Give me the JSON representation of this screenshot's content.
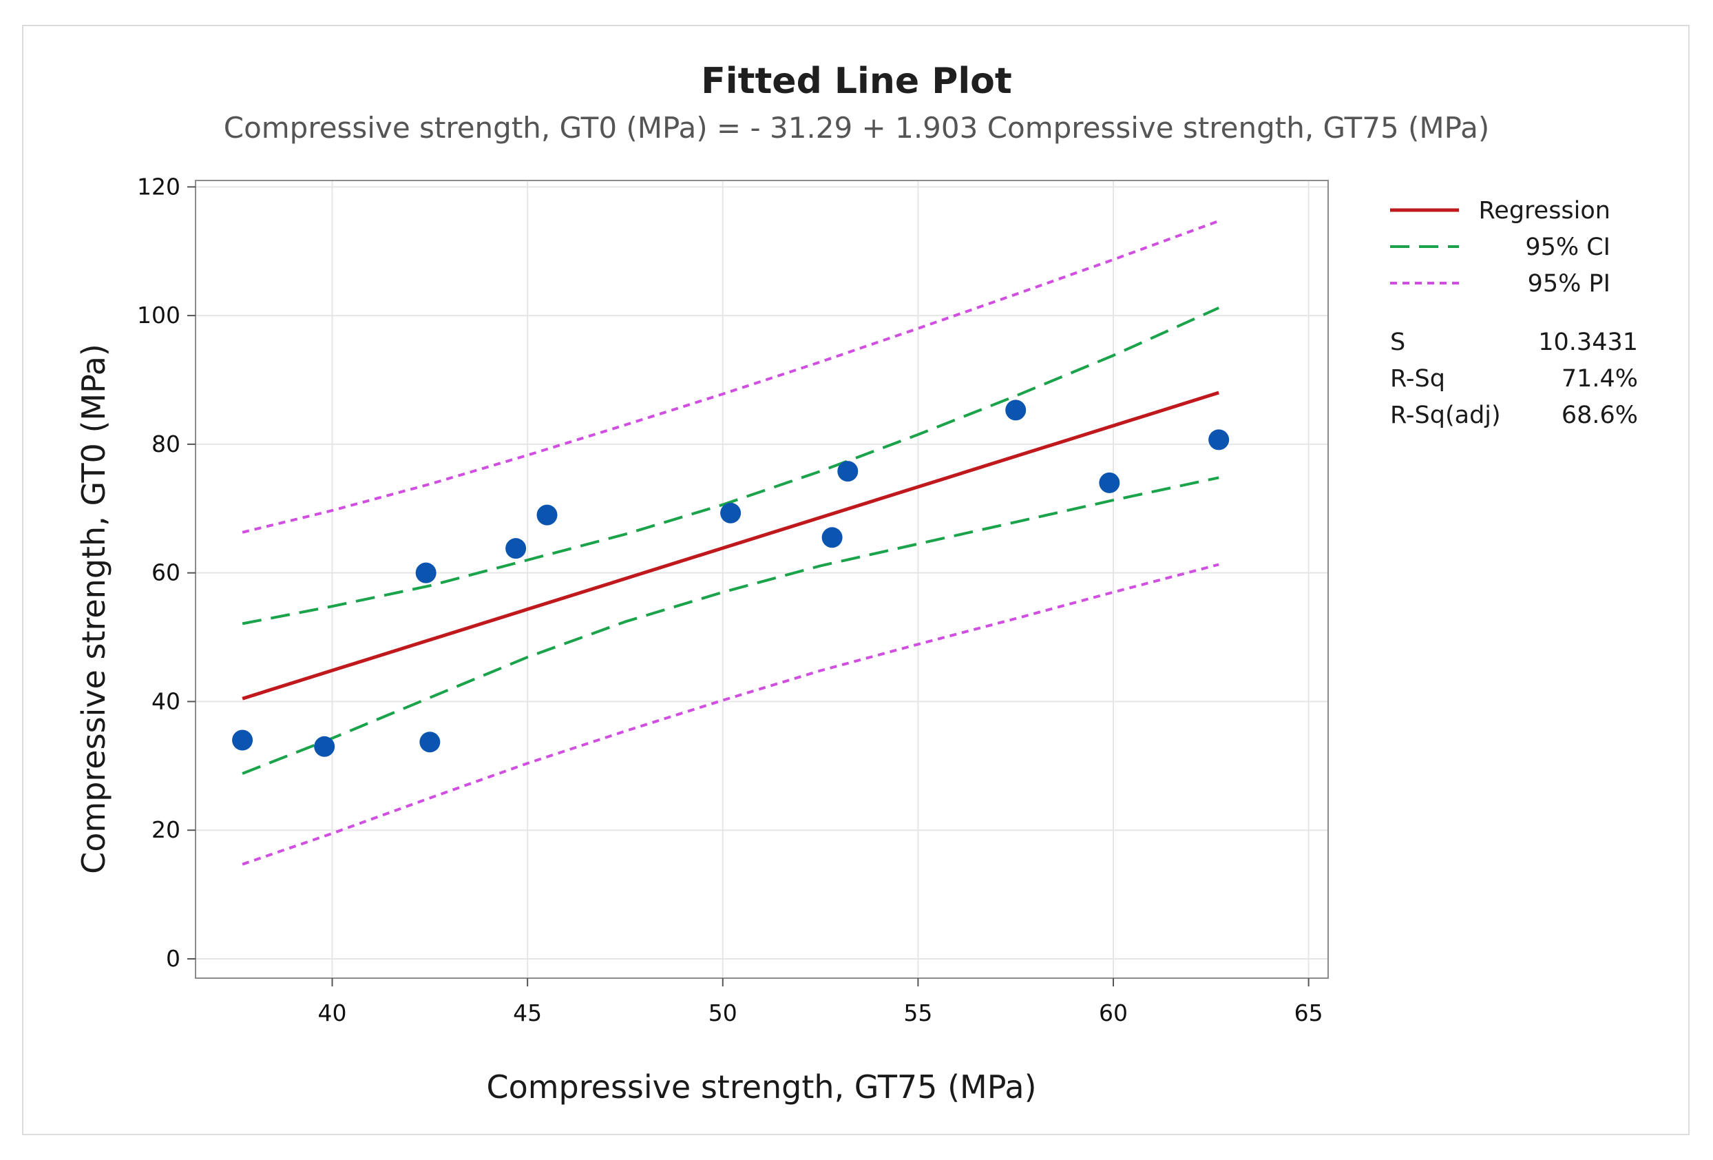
{
  "chart_data": {
    "type": "scatter",
    "title": "Fitted Line Plot",
    "subtitle": "Compressive strength, GT0 (MPa) = - 31.29 + 1.903 Compressive strength, GT75 (MPa)",
    "xlabel": "Compressive strength, GT75 (MPa)",
    "ylabel": "Compressive strength, GT0 (MPa)",
    "xlim": [
      36.5,
      65.5
    ],
    "ylim": [
      -3,
      121
    ],
    "xticks": [
      40,
      45,
      50,
      55,
      60,
      65
    ],
    "yticks": [
      0,
      20,
      40,
      60,
      80,
      100,
      120
    ],
    "grid": true,
    "legend_position": "right",
    "points": {
      "x": [
        37.7,
        39.8,
        42.4,
        42.5,
        44.7,
        45.5,
        50.2,
        52.8,
        53.2,
        57.5,
        59.9,
        62.7
      ],
      "y": [
        34.0,
        33.0,
        60.0,
        33.7,
        63.8,
        69.0,
        69.3,
        65.5,
        75.8,
        85.3,
        74.0,
        80.7
      ]
    },
    "fit": {
      "intercept": -31.29,
      "slope": 1.903,
      "x_range": [
        37.7,
        62.7
      ]
    },
    "series": [
      {
        "name": "Regression",
        "style": "solid",
        "color": "#c0191d",
        "x": [
          37.7,
          62.7
        ],
        "y": [
          40.45,
          88.02
        ]
      },
      {
        "name": "95% CI upper",
        "style": "dashed",
        "color": "#1aa34a",
        "x": [
          37.7,
          40,
          42.5,
          45,
          47.5,
          50,
          52.5,
          55,
          57.5,
          60,
          62.7
        ],
        "y": [
          52.1,
          54.8,
          58.0,
          62.0,
          66.0,
          70.6,
          75.8,
          81.5,
          87.5,
          93.8,
          101.2
        ]
      },
      {
        "name": "95% CI lower",
        "style": "dashed",
        "color": "#1aa34a",
        "x": [
          37.7,
          40,
          42.5,
          45,
          47.5,
          50,
          52.5,
          55,
          57.5,
          60,
          62.7
        ],
        "y": [
          28.8,
          34.3,
          40.6,
          46.9,
          52.4,
          57.0,
          61.1,
          64.5,
          67.9,
          71.3,
          74.8
        ]
      },
      {
        "name": "95% PI upper",
        "style": "dotted",
        "color": "#d04fe0",
        "x": [
          37.7,
          40,
          42.5,
          45,
          47.5,
          50,
          52.5,
          55,
          57.5,
          60,
          62.7
        ],
        "y": [
          66.3,
          69.7,
          73.8,
          78.3,
          83.0,
          87.8,
          92.8,
          98.0,
          103.3,
          108.7,
          114.7
        ]
      },
      {
        "name": "95% PI lower",
        "style": "dotted",
        "color": "#d04fe0",
        "x": [
          37.7,
          40,
          42.5,
          45,
          47.5,
          50,
          52.5,
          55,
          57.5,
          60,
          62.7
        ],
        "y": [
          14.7,
          19.5,
          25.0,
          30.4,
          35.4,
          40.2,
          44.8,
          48.9,
          52.9,
          57.0,
          61.3
        ]
      }
    ],
    "legend": [
      {
        "label": "Regression",
        "style": "solid",
        "color": "#c0191d"
      },
      {
        "label": "95% CI",
        "style": "dashed",
        "color": "#1aa34a"
      },
      {
        "label": "95% PI",
        "style": "dotted",
        "color": "#d04fe0"
      }
    ],
    "stats": [
      {
        "label": "S",
        "value": "10.3431"
      },
      {
        "label": "R-Sq",
        "value": "71.4%"
      },
      {
        "label": "R-Sq(adj)",
        "value": "68.6%"
      }
    ],
    "point_color": "#0b55b0"
  }
}
